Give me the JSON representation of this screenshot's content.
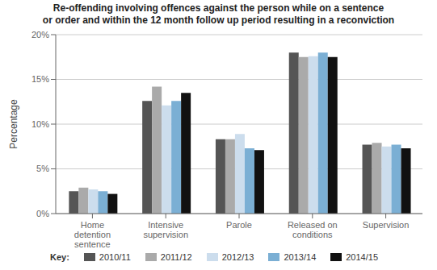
{
  "chart_data": {
    "type": "bar",
    "title": "Re-offending involving offences against the person while on a sentence\nor order and within the 12 month follow up period resulting in a reconviction",
    "ylabel": "Percentage",
    "categories": [
      "Home\ndetention\nsentence",
      "Intensive\nsupervision",
      "Parole",
      "Released on\nconditions",
      "Supervision"
    ],
    "series": [
      {
        "name": "2010/11",
        "color": "#555555",
        "values": [
          2.5,
          12.6,
          8.3,
          18.0,
          7.7
        ]
      },
      {
        "name": "2011/12",
        "color": "#aaaaaa",
        "values": [
          2.9,
          14.2,
          8.3,
          17.5,
          7.9
        ]
      },
      {
        "name": "2012/13",
        "color": "#ccdded",
        "values": [
          2.7,
          12.1,
          8.9,
          17.6,
          7.5
        ]
      },
      {
        "name": "2013/14",
        "color": "#7bafd4",
        "values": [
          2.5,
          12.6,
          7.3,
          18.0,
          7.7
        ]
      },
      {
        "name": "2014/15",
        "color": "#111111",
        "values": [
          2.2,
          13.5,
          7.1,
          17.5,
          7.3
        ]
      }
    ],
    "ylim": [
      0,
      20
    ],
    "yticks": [
      {
        "value": 0,
        "label": "0%"
      },
      {
        "value": 5,
        "label": "5%"
      },
      {
        "value": 10,
        "label": "10%"
      },
      {
        "value": 15,
        "label": "15%"
      },
      {
        "value": 20,
        "label": "20%"
      }
    ],
    "grid": true,
    "legend": "bottom",
    "legend_title": "Key:"
  }
}
